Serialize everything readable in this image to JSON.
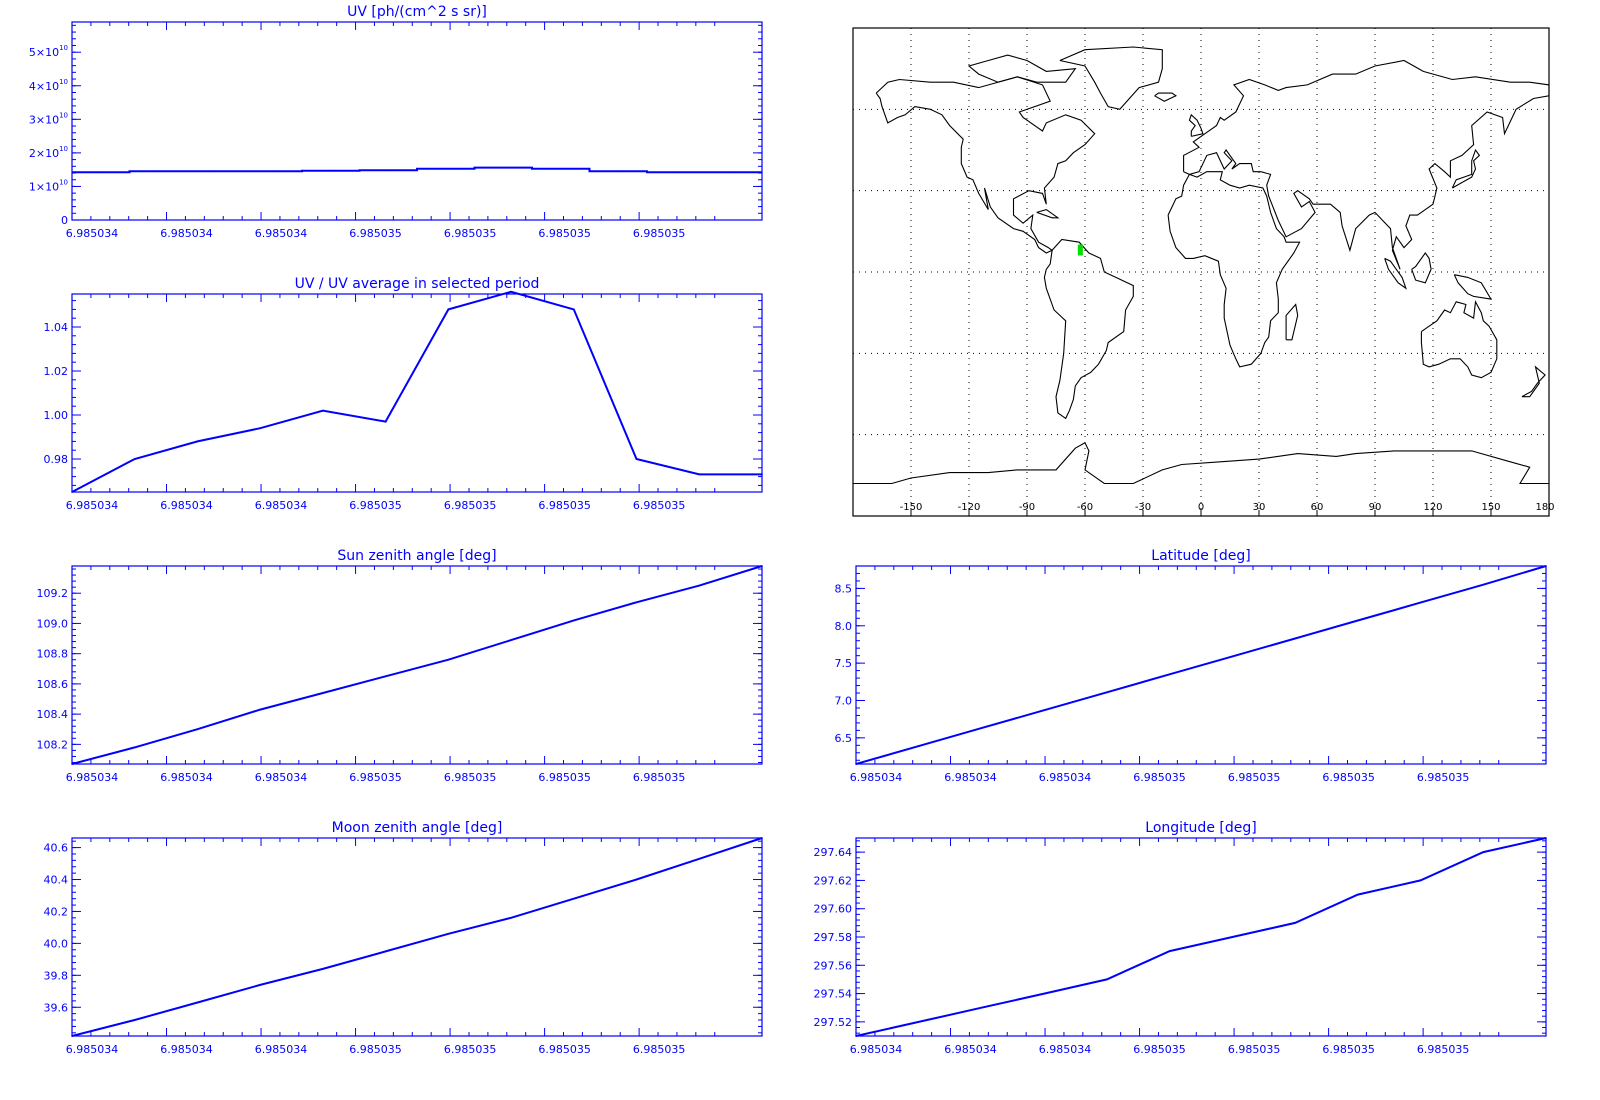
{
  "colors": {
    "axis": "#0000ff",
    "line": "#0000ff",
    "map": "#000000",
    "marker": "#00dd00"
  },
  "chart_data": [
    {
      "id": "uv",
      "type": "line",
      "title": "UV [ph/(cm^2 s sr)]",
      "ylim": [
        0,
        59000000000.0
      ],
      "yticks": [
        0,
        10000000000.0,
        20000000000.0,
        30000000000.0,
        40000000000.0,
        50000000000.0
      ],
      "ytick_labels": [
        "0",
        "1×10",
        "2×10",
        "3×10",
        "4×10",
        "5×10"
      ],
      "ytick_exps": [
        "",
        "10",
        "10",
        "10",
        "10",
        "10"
      ],
      "xtick_labels": [
        "6.985034",
        "6.985034",
        "6.985034",
        "6.985035",
        "6.985035",
        "6.985035",
        "6.985035"
      ],
      "step": true,
      "values": [
        14200000000.0,
        14500000000.0,
        14500000000.0,
        14500000000.0,
        14700000000.0,
        14800000000.0,
        15300000000.0,
        15600000000.0,
        15300000000.0,
        14500000000.0,
        14200000000.0,
        14200000000.0
      ]
    },
    {
      "id": "uvratio",
      "type": "line",
      "title": "UV / UV average in selected period",
      "ylim": [
        0.965,
        1.055
      ],
      "yticks": [
        0.98,
        1.0,
        1.02,
        1.04
      ],
      "ytick_labels": [
        "0.98",
        "1.00",
        "1.02",
        "1.04"
      ],
      "xtick_labels": [
        "6.985034",
        "6.985034",
        "6.985034",
        "6.985035",
        "6.985035",
        "6.985035",
        "6.985035"
      ],
      "values": [
        0.965,
        0.98,
        0.988,
        0.994,
        1.002,
        0.997,
        1.048,
        1.056,
        1.048,
        0.98,
        0.973,
        0.973
      ]
    },
    {
      "id": "sza",
      "type": "line",
      "title": "Sun zenith angle [deg]",
      "ylim": [
        108.07,
        109.38
      ],
      "yticks": [
        108.2,
        108.4,
        108.6,
        108.8,
        109.0,
        109.2
      ],
      "ytick_labels": [
        "108.2",
        "108.4",
        "108.6",
        "108.8",
        "109.0",
        "109.2"
      ],
      "xtick_labels": [
        "6.985034",
        "6.985034",
        "6.985034",
        "6.985035",
        "6.985035",
        "6.985035",
        "6.985035"
      ],
      "values": [
        108.07,
        108.18,
        108.3,
        108.43,
        108.54,
        108.65,
        108.76,
        108.89,
        109.02,
        109.14,
        109.25,
        109.38
      ]
    },
    {
      "id": "lat",
      "type": "line",
      "title": "Latitude [deg]",
      "ylim": [
        6.15,
        8.8
      ],
      "yticks": [
        6.5,
        7.0,
        7.5,
        8.0,
        8.5
      ],
      "ytick_labels": [
        "6.5",
        "7.0",
        "7.5",
        "8.0",
        "8.5"
      ],
      "xtick_labels": [
        "6.985034",
        "6.985034",
        "6.985034",
        "6.985035",
        "6.985035",
        "6.985035",
        "6.985035"
      ],
      "values": [
        6.15,
        6.39,
        6.63,
        6.87,
        7.11,
        7.35,
        7.59,
        7.83,
        8.07,
        8.31,
        8.55,
        8.8
      ]
    },
    {
      "id": "mza",
      "type": "line",
      "title": "Moon zenith angle [deg]",
      "ylim": [
        39.42,
        40.66
      ],
      "yticks": [
        39.6,
        39.8,
        40.0,
        40.2,
        40.4,
        40.6
      ],
      "ytick_labels": [
        "39.6",
        "39.8",
        "40.0",
        "40.2",
        "40.4",
        "40.6"
      ],
      "xtick_labels": [
        "6.985034",
        "6.985034",
        "6.985034",
        "6.985035",
        "6.985035",
        "6.985035",
        "6.985035"
      ],
      "values": [
        39.42,
        39.52,
        39.63,
        39.74,
        39.84,
        39.95,
        40.06,
        40.16,
        40.28,
        40.4,
        40.53,
        40.66
      ]
    },
    {
      "id": "lon",
      "type": "line",
      "title": "Longitude [deg]",
      "ylim": [
        297.51,
        297.65
      ],
      "yticks": [
        297.52,
        297.54,
        297.56,
        297.58,
        297.6,
        297.62,
        297.64
      ],
      "ytick_labels": [
        "297.52",
        "297.54",
        "297.56",
        "297.58",
        "297.60",
        "297.62",
        "297.64"
      ],
      "xtick_labels": [
        "6.985034",
        "6.985034",
        "6.985034",
        "6.985035",
        "6.985035",
        "6.985035",
        "6.985035"
      ],
      "values": [
        297.51,
        297.52,
        297.53,
        297.54,
        297.55,
        297.57,
        297.58,
        297.59,
        297.61,
        297.62,
        297.64,
        297.65
      ]
    }
  ],
  "map": {
    "xtick_labels": [
      "-150",
      "-120",
      "-90",
      "-60",
      "-30",
      "0",
      "30",
      "60",
      "90",
      "120",
      "150",
      "180"
    ],
    "marker": {
      "lon": -62.4,
      "lat": 7.2
    },
    "grid_lon": [
      -150,
      -120,
      -90,
      -60,
      -30,
      0,
      30,
      60,
      90,
      120,
      150
    ],
    "grid_lat": [
      -60,
      -30,
      0,
      30,
      60
    ]
  }
}
